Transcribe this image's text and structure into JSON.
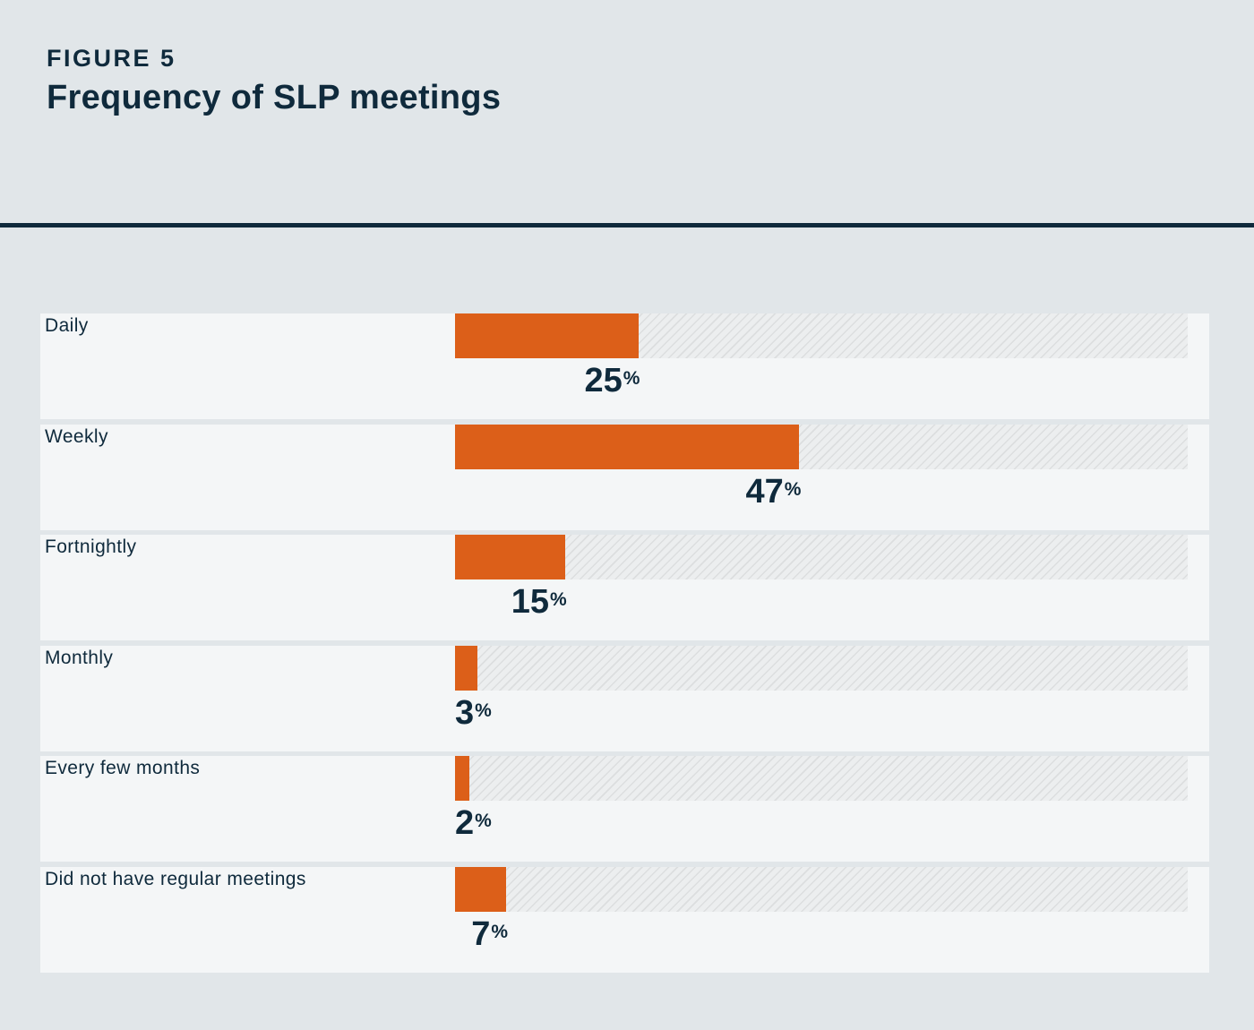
{
  "header": {
    "figure_label": "FIGURE 5",
    "title": "Frequency of SLP meetings"
  },
  "chart_data": {
    "type": "bar",
    "orientation": "horizontal",
    "title": "Frequency of SLP meetings",
    "categories": [
      "Daily",
      "Weekly",
      "Fortnightly",
      "Monthly",
      "Every few months",
      "Did not have regular meetings"
    ],
    "values": [
      25,
      47,
      15,
      3,
      2,
      7
    ],
    "unit": "%",
    "xlim": [
      0,
      100
    ],
    "xlabel": "",
    "ylabel": "",
    "grid": false,
    "colors": {
      "bar": "#dc5f19",
      "track": "#eceeef",
      "text": "#0f2a3c"
    }
  }
}
